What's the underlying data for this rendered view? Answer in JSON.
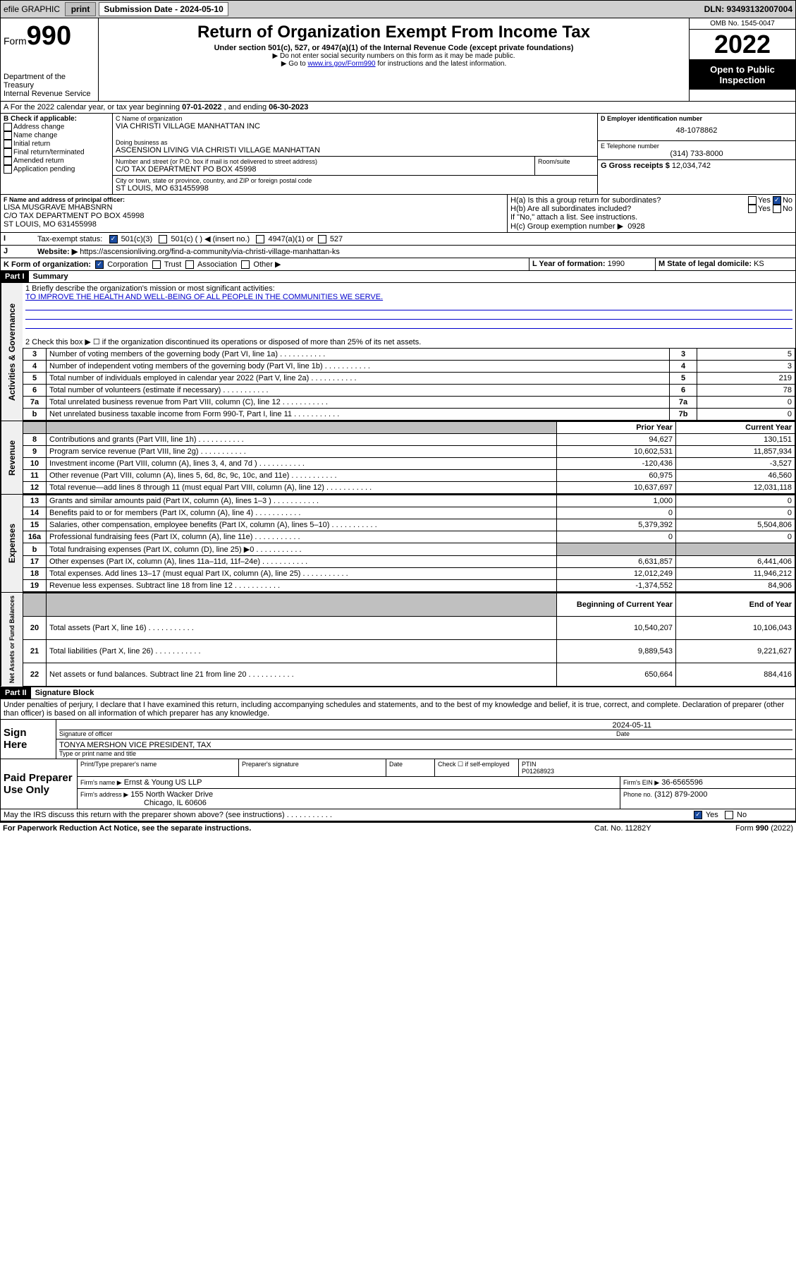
{
  "top_bar": {
    "efile": "efile GRAPHIC",
    "print": "print",
    "submission_label": "Submission Date - 2024-05-10",
    "dln": "DLN: 93493132007004"
  },
  "header": {
    "form_word": "Form",
    "form_no": "990",
    "dept": "Department of the Treasury",
    "irs": "Internal Revenue Service",
    "title": "Return of Organization Exempt From Income Tax",
    "subtitle": "Under section 501(c), 527, or 4947(a)(1) of the Internal Revenue Code (except private foundations)",
    "note1": "▶ Do not enter social security numbers on this form as it may be made public.",
    "note2_pre": "▶ Go to ",
    "note2_link": "www.irs.gov/Form990",
    "note2_post": " for instructions and the latest information.",
    "omb": "OMB No. 1545-0047",
    "year": "2022",
    "open": "Open to Public Inspection"
  },
  "sectionA": {
    "text_pre": "A For the 2022 calendar year, or tax year beginning ",
    "begin": "07-01-2022",
    "mid": "  , and ending ",
    "end": "06-30-2023"
  },
  "sectionB": {
    "label": "B Check if applicable:",
    "items": [
      "Address change",
      "Name change",
      "Initial return",
      "Final return/terminated",
      "Amended return",
      "Application pending"
    ]
  },
  "sectionC": {
    "name_label": "C Name of organization",
    "name": "VIA CHRISTI VILLAGE MANHATTAN INC",
    "dba_label": "Doing business as",
    "dba": "ASCENSION LIVING VIA CHRISTI VILLAGE MANHATTAN",
    "street_label": "Number and street (or P.O. box if mail is not delivered to street address)",
    "street": "C/O TAX DEPARTMENT PO BOX 45998",
    "room_label": "Room/suite",
    "city_label": "City or town, state or province, country, and ZIP or foreign postal code",
    "city": "ST LOUIS, MO  631455998"
  },
  "sectionD": {
    "label": "D Employer identification number",
    "value": "48-1078862"
  },
  "sectionE": {
    "label": "E Telephone number",
    "value": "(314) 733-8000"
  },
  "sectionG": {
    "label": "G Gross receipts $",
    "value": "12,034,742"
  },
  "sectionF": {
    "label": "F Name and address of principal officer:",
    "name": "LISA MUSGRAVE MHABSNRN",
    "addr1": "C/O TAX DEPARTMENT PO BOX 45998",
    "addr2": "ST LOUIS, MO  631455998"
  },
  "sectionH": {
    "a": "H(a)  Is this a group return for subordinates?",
    "a_yes": "Yes",
    "a_no": "No",
    "b": "H(b)  Are all subordinates included?",
    "b_yes": "Yes",
    "b_no": "No",
    "b_note": "If \"No,\" attach a list. See instructions.",
    "c": "H(c)  Group exemption number ▶",
    "c_val": "0928"
  },
  "sectionI": {
    "label": "Tax-exempt status:",
    "opt1": "501(c)(3)",
    "opt2": "501(c) (  ) ◀ (insert no.)",
    "opt3": "4947(a)(1) or",
    "opt4": "527"
  },
  "sectionJ": {
    "label": "Website: ▶",
    "url": "https://ascensionliving.org/find-a-community/via-christi-village-manhattan-ks"
  },
  "sectionK": {
    "label": "K Form of organization:",
    "opts": [
      "Corporation",
      "Trust",
      "Association",
      "Other ▶"
    ]
  },
  "sectionL": {
    "label": "L Year of formation:",
    "value": "1990"
  },
  "sectionM": {
    "label": "M State of legal domicile:",
    "value": "KS"
  },
  "part1": {
    "header": "Part I",
    "title": "Summary",
    "line1_label": "1  Briefly describe the organization's mission or most significant activities:",
    "line1_text": "TO IMPROVE THE HEALTH AND WELL-BEING OF ALL PEOPLE IN THE COMMUNITIES WE SERVE.",
    "line2": "2   Check this box ▶ ☐  if the organization discontinued its operations or disposed of more than 25% of its net assets.",
    "governance_label": "Activities & Governance",
    "revenue_label": "Revenue",
    "expenses_label": "Expenses",
    "netassets_label": "Net Assets or Fund Balances",
    "col_prior": "Prior Year",
    "col_current": "Current Year",
    "col_begin": "Beginning of Current Year",
    "col_end": "End of Year",
    "rows_gov": [
      {
        "n": "3",
        "label": "Number of voting members of the governing body (Part VI, line 1a)",
        "box": "3",
        "val": "5"
      },
      {
        "n": "4",
        "label": "Number of independent voting members of the governing body (Part VI, line 1b)",
        "box": "4",
        "val": "3"
      },
      {
        "n": "5",
        "label": "Total number of individuals employed in calendar year 2022 (Part V, line 2a)",
        "box": "5",
        "val": "219"
      },
      {
        "n": "6",
        "label": "Total number of volunteers (estimate if necessary)",
        "box": "6",
        "val": "78"
      },
      {
        "n": "7a",
        "label": "Total unrelated business revenue from Part VIII, column (C), line 12",
        "box": "7a",
        "val": "0"
      },
      {
        "n": "b",
        "label": "Net unrelated business taxable income from Form 990-T, Part I, line 11",
        "box": "7b",
        "val": "0"
      }
    ],
    "rows_rev": [
      {
        "n": "8",
        "label": "Contributions and grants (Part VIII, line 1h)",
        "py": "94,627",
        "cy": "130,151"
      },
      {
        "n": "9",
        "label": "Program service revenue (Part VIII, line 2g)",
        "py": "10,602,531",
        "cy": "11,857,934"
      },
      {
        "n": "10",
        "label": "Investment income (Part VIII, column (A), lines 3, 4, and 7d )",
        "py": "-120,436",
        "cy": "-3,527"
      },
      {
        "n": "11",
        "label": "Other revenue (Part VIII, column (A), lines 5, 6d, 8c, 9c, 10c, and 11e)",
        "py": "60,975",
        "cy": "46,560"
      },
      {
        "n": "12",
        "label": "Total revenue—add lines 8 through 11 (must equal Part VIII, column (A), line 12)",
        "py": "10,637,697",
        "cy": "12,031,118"
      }
    ],
    "rows_exp": [
      {
        "n": "13",
        "label": "Grants and similar amounts paid (Part IX, column (A), lines 1–3 )",
        "py": "1,000",
        "cy": "0"
      },
      {
        "n": "14",
        "label": "Benefits paid to or for members (Part IX, column (A), line 4)",
        "py": "0",
        "cy": "0"
      },
      {
        "n": "15",
        "label": "Salaries, other compensation, employee benefits (Part IX, column (A), lines 5–10)",
        "py": "5,379,392",
        "cy": "5,504,806"
      },
      {
        "n": "16a",
        "label": "Professional fundraising fees (Part IX, column (A), line 11e)",
        "py": "0",
        "cy": "0"
      },
      {
        "n": "b",
        "label": "Total fundraising expenses (Part IX, column (D), line 25) ▶0",
        "py": "",
        "cy": "",
        "shade": true
      },
      {
        "n": "17",
        "label": "Other expenses (Part IX, column (A), lines 11a–11d, 11f–24e)",
        "py": "6,631,857",
        "cy": "6,441,406"
      },
      {
        "n": "18",
        "label": "Total expenses. Add lines 13–17 (must equal Part IX, column (A), line 25)",
        "py": "12,012,249",
        "cy": "11,946,212"
      },
      {
        "n": "19",
        "label": "Revenue less expenses. Subtract line 18 from line 12",
        "py": "-1,374,552",
        "cy": "84,906"
      }
    ],
    "rows_net": [
      {
        "n": "20",
        "label": "Total assets (Part X, line 16)",
        "py": "10,540,207",
        "cy": "10,106,043"
      },
      {
        "n": "21",
        "label": "Total liabilities (Part X, line 26)",
        "py": "9,889,543",
        "cy": "9,221,627"
      },
      {
        "n": "22",
        "label": "Net assets or fund balances. Subtract line 21 from line 20",
        "py": "650,664",
        "cy": "884,416"
      }
    ]
  },
  "part2": {
    "header": "Part II",
    "title": "Signature Block",
    "declaration": "Under penalties of perjury, I declare that I have examined this return, including accompanying schedules and statements, and to the best of my knowledge and belief, it is true, correct, and complete. Declaration of preparer (other than officer) is based on all information of which preparer has any knowledge.",
    "sign_here": "Sign Here",
    "sig_officer": "Signature of officer",
    "sig_date": "Date",
    "sig_date_val": "2024-05-11",
    "officer_name": "TONYA MERSHON  VICE PRESIDENT, TAX",
    "type_print": "Type or print name and title",
    "paid": "Paid Preparer Use Only",
    "prep_name_label": "Print/Type preparer's name",
    "prep_sig_label": "Preparer's signature",
    "prep_date_label": "Date",
    "check_self": "Check ☐ if self-employed",
    "ptin_label": "PTIN",
    "ptin": "P01268923",
    "firm_name_label": "Firm's name   ▶",
    "firm_name": "Ernst & Young US LLP",
    "firm_ein_label": "Firm's EIN ▶",
    "firm_ein": "36-6565596",
    "firm_addr_label": "Firm's address ▶",
    "firm_addr": "155 North Wacker Drive",
    "firm_city": "Chicago, IL  60606",
    "firm_phone_label": "Phone no.",
    "firm_phone": "(312) 879-2000",
    "discuss": "May the IRS discuss this return with the preparer shown above? (see instructions)",
    "yes": "Yes",
    "no": "No"
  },
  "footer": {
    "paperwork": "For Paperwork Reduction Act Notice, see the separate instructions.",
    "cat": "Cat. No. 11282Y",
    "formref": "Form 990 (2022)"
  }
}
